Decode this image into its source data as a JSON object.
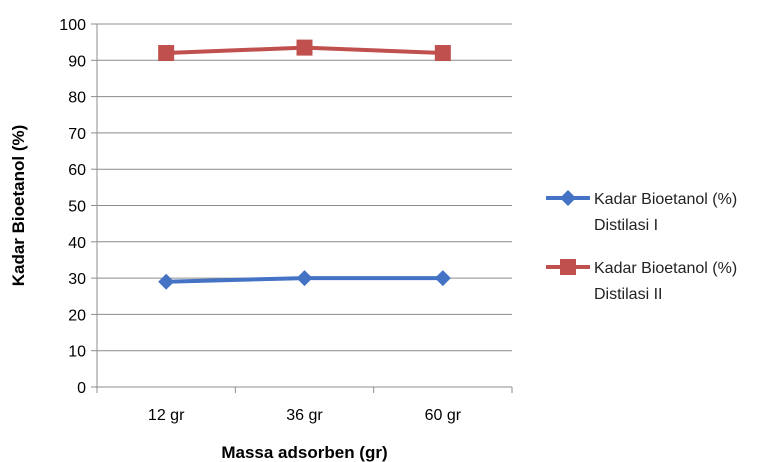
{
  "chart_data": {
    "type": "line",
    "categories": [
      "12 gr",
      "36 gr",
      "60 gr"
    ],
    "series": [
      {
        "name": "Kadar Bioetanol (%) Distilasi I",
        "name_lines": [
          "Kadar Bioetanol (%)",
          "Distilasi I"
        ],
        "values": [
          29,
          30,
          30
        ],
        "color": "#4472C4",
        "marker": "diamond"
      },
      {
        "name": "Kadar Bioetanol (%) Distilasi II",
        "name_lines": [
          "Kadar Bioetanol (%)",
          "Distilasi II"
        ],
        "values": [
          92,
          93.5,
          92
        ],
        "color": "#C0504D",
        "marker": "square"
      }
    ],
    "title": "",
    "xlabel": "Massa adsorben (gr)",
    "ylabel": "Kadar Bioetanol (%)",
    "ylim": [
      0,
      100
    ],
    "yticks": [
      0,
      10,
      20,
      30,
      40,
      50,
      60,
      70,
      80,
      90,
      100
    ],
    "grid": true,
    "legend": "right"
  }
}
